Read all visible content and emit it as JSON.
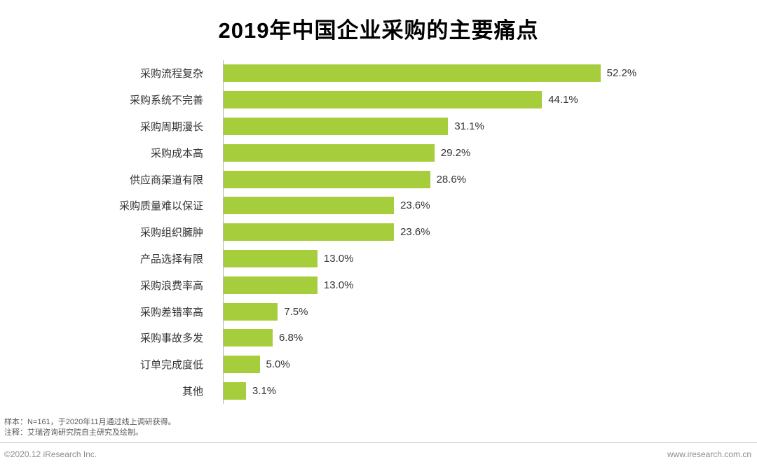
{
  "title": "2019年中国企业采购的主要痛点",
  "chart_data": {
    "type": "bar",
    "orientation": "horizontal",
    "title": "2019年中国企业采购的主要痛点",
    "categories": [
      "采购流程复杂",
      "采购系统不完善",
      "采购周期漫长",
      "采购成本高",
      "供应商渠道有限",
      "采购质量难以保证",
      "采购组织臃肿",
      "产品选择有限",
      "采购浪费率高",
      "采购差错率高",
      "采购事故多发",
      "订单完成度低",
      "其他"
    ],
    "values": [
      52.2,
      44.1,
      31.1,
      29.2,
      28.6,
      23.6,
      23.6,
      13.0,
      13.0,
      7.5,
      6.8,
      5.0,
      3.1
    ],
    "value_labels": [
      "52.2%",
      "44.1%",
      "31.1%",
      "29.2%",
      "28.6%",
      "23.6%",
      "23.6%",
      "13.0%",
      "13.0%",
      "7.5%",
      "6.8%",
      "5.0%",
      "3.1%"
    ],
    "bar_color": "#a5cd3c",
    "xlim": [
      0,
      55
    ],
    "xlabel": "",
    "ylabel": "",
    "grid": false,
    "legend": "none"
  },
  "footnotes": {
    "sample": "样本：N=161，于2020年11月通过线上调研获得。",
    "note": "注释：艾瑞咨询研究院自主研究及绘制。"
  },
  "footer": {
    "copyright": "©2020.12 iResearch Inc.",
    "website": "www.iresearch.com.cn"
  }
}
